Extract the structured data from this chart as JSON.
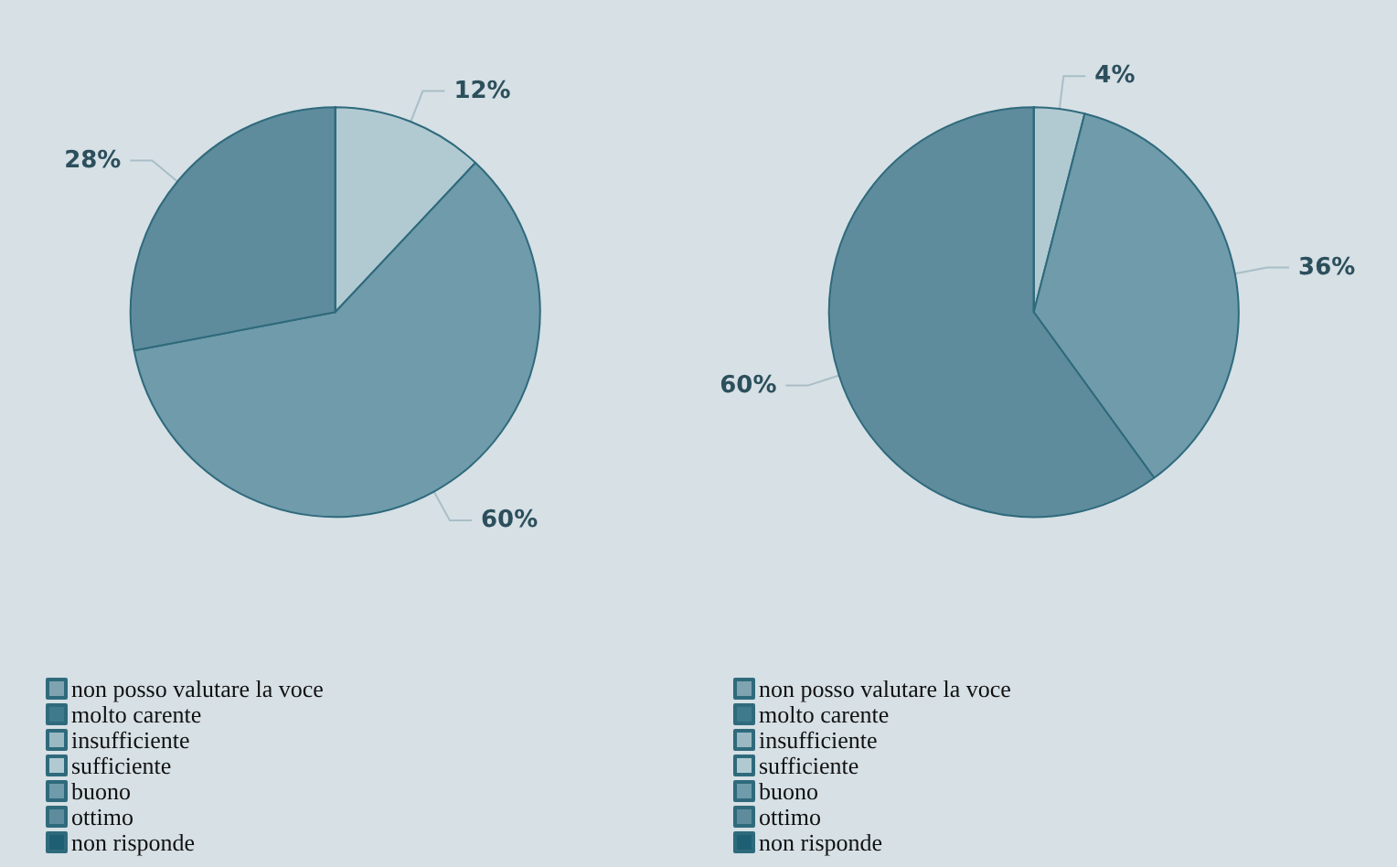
{
  "chart_data": [
    {
      "type": "pie",
      "categories": [
        "non posso valutare la voce",
        "molto carente",
        "insufficiente",
        "sufficiente",
        "buono",
        "ottimo",
        "non risponde"
      ],
      "values": [
        0,
        0,
        0,
        12,
        60,
        28,
        0
      ],
      "value_labels": [
        null,
        null,
        null,
        "12%",
        "60%",
        "28%",
        null
      ],
      "colors": [
        "#7fa3b0",
        "#3f7a8c",
        "#9bb9c3",
        "#b1cad2",
        "#6f9bab",
        "#5e8c9c",
        "#1f5f74"
      ],
      "legend": "bottom left"
    },
    {
      "type": "pie",
      "categories": [
        "non posso valutare la voce",
        "molto carente",
        "insufficiente",
        "sufficiente",
        "buono",
        "ottimo",
        "non risponde"
      ],
      "values": [
        0,
        0,
        0,
        4,
        36,
        60,
        0
      ],
      "value_labels": [
        null,
        null,
        null,
        "4%",
        "36%",
        "60%",
        null
      ],
      "colors": [
        "#7fa3b0",
        "#3f7a8c",
        "#9bb9c3",
        "#b1cad2",
        "#6f9bab",
        "#5e8c9c",
        "#1f5f74"
      ],
      "legend": "bottom left"
    }
  ]
}
